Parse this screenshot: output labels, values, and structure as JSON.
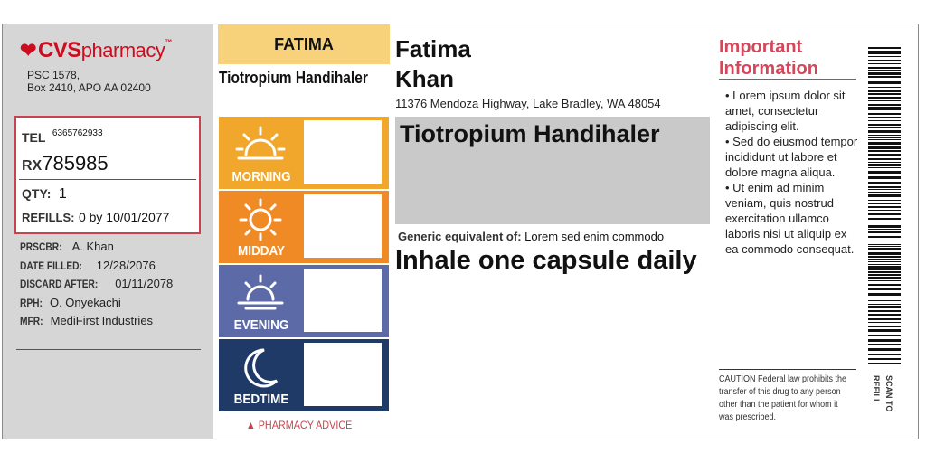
{
  "brand": {
    "name": "CVS",
    "suffix": "pharmacy",
    "color": "#cc0c1f"
  },
  "pharmacy_address": [
    "PSC 1578,",
    "Box 2410, APO AA 02400"
  ],
  "info": {
    "tel_label": "TEL",
    "tel": "6365762933",
    "rx_label": "RX",
    "rx": "785985",
    "qty_label": "QTY:",
    "qty": "1",
    "refills_label": "REFILLS:",
    "refills": "0 by 10/01/2077"
  },
  "details": [
    {
      "label": "PRSCBR:",
      "value": "A. Khan"
    },
    {
      "label": "DATE FILLED:",
      "value": "12/28/2076"
    },
    {
      "label": "DISCARD AFTER:",
      "value": "01/11/2078"
    },
    {
      "label": "RPH:",
      "value": "O. Onyekachi"
    },
    {
      "label": "MFR:",
      "value": "MediFirst Industries"
    }
  ],
  "schedule": {
    "patient_short": "FATIMA",
    "drug_short": "Tiotropium Handihaler",
    "slots": [
      {
        "label": "MORNING",
        "icon": "sunrise-icon",
        "color": "#f1a72c"
      },
      {
        "label": "MIDDAY",
        "icon": "sun-icon",
        "color": "#f08a24"
      },
      {
        "label": "EVENING",
        "icon": "sunset-icon",
        "color": "#5c6aa8"
      },
      {
        "label": "BEDTIME",
        "icon": "moon-icon",
        "color": "#1f3a66"
      }
    ],
    "advice": "▲ PHARMACY ADVICE"
  },
  "patient": {
    "first": "Fatima",
    "last": "Khan",
    "address": "11376 Mendoza Highway, Lake Bradley, WA 48054"
  },
  "drug": {
    "name": "Tiotropium Handihaler",
    "generic_label": "Generic equivalent of:",
    "generic_value": "Lorem sed enim commodo",
    "directions": "Inhale one capsule daily"
  },
  "important": {
    "title_1": "Important",
    "title_2": "Information",
    "bullets": [
      "• Lorem ipsum dolor sit amet, consectetur adipiscing elit.",
      "• Sed do eiusmod tempor incididunt ut labore et dolore magna aliqua.",
      "• Ut enim ad minim veniam, quis nostrud exercitation ullamco laboris nisi ut aliquip ex ea commodo consequat."
    ],
    "caution": "CAUTION Federal law prohibits the transfer of this drug to any person other than the patient for whom it was prescribed."
  },
  "scan": {
    "line1": "SCAN TO",
    "line2": "REFILL"
  }
}
